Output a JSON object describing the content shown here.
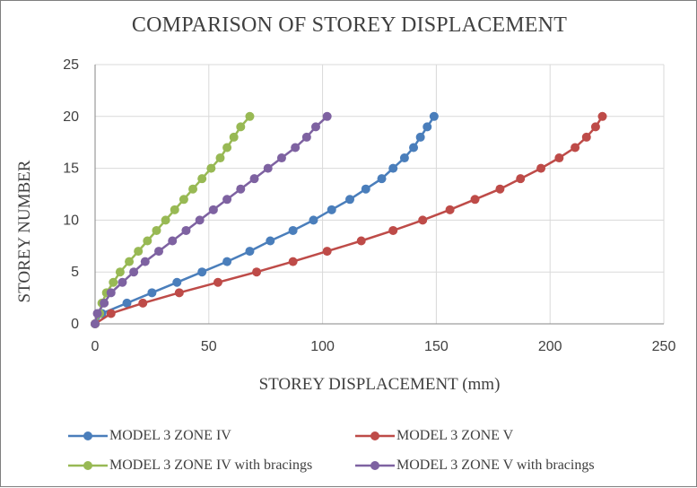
{
  "chart_data": {
    "type": "line",
    "title": "COMPARISON OF STOREY DISPLACEMENT",
    "xlabel": "STOREY DISPLACEMENT (mm)",
    "ylabel": "STOREY NUMBER",
    "xlim": [
      0,
      250
    ],
    "ylim": [
      0,
      25
    ],
    "x_ticks": [
      "0",
      "50",
      "100",
      "150",
      "200",
      "250"
    ],
    "y_ticks": [
      "0",
      "5",
      "10",
      "15",
      "20",
      "25"
    ],
    "grid": true,
    "legend_position": "bottom",
    "series": [
      {
        "name": "MODEL 3 ZONE  IV",
        "color": "#4a7ebb",
        "points": [
          [
            0,
            0
          ],
          [
            3,
            1
          ],
          [
            14,
            2
          ],
          [
            25,
            3
          ],
          [
            36,
            4
          ],
          [
            47,
            5
          ],
          [
            58,
            6
          ],
          [
            68,
            7
          ],
          [
            77,
            8
          ],
          [
            87,
            9
          ],
          [
            96,
            10
          ],
          [
            104,
            11
          ],
          [
            112,
            12
          ],
          [
            119,
            13
          ],
          [
            126,
            14
          ],
          [
            131,
            15
          ],
          [
            136,
            16
          ],
          [
            140,
            17
          ],
          [
            143,
            18
          ],
          [
            146,
            19
          ],
          [
            149,
            20
          ]
        ]
      },
      {
        "name": "MODEL 3 ZONE V",
        "color": "#be4b48",
        "points": [
          [
            0,
            0
          ],
          [
            7,
            1
          ],
          [
            21,
            2
          ],
          [
            37,
            3
          ],
          [
            54,
            4
          ],
          [
            71,
            5
          ],
          [
            87,
            6
          ],
          [
            102,
            7
          ],
          [
            117,
            8
          ],
          [
            131,
            9
          ],
          [
            144,
            10
          ],
          [
            156,
            11
          ],
          [
            167,
            12
          ],
          [
            178,
            13
          ],
          [
            187,
            14
          ],
          [
            196,
            15
          ],
          [
            204,
            16
          ],
          [
            211,
            17
          ],
          [
            216,
            18
          ],
          [
            220,
            19
          ],
          [
            223,
            20
          ]
        ]
      },
      {
        "name": "MODEL 3 ZONE  IV with bracings",
        "color": "#98b954",
        "points": [
          [
            0,
            0
          ],
          [
            2,
            1
          ],
          [
            3,
            2
          ],
          [
            5,
            3
          ],
          [
            8,
            4
          ],
          [
            11,
            5
          ],
          [
            15,
            6
          ],
          [
            19,
            7
          ],
          [
            23,
            8
          ],
          [
            27,
            9
          ],
          [
            31,
            10
          ],
          [
            35,
            11
          ],
          [
            39,
            12
          ],
          [
            43,
            13
          ],
          [
            47,
            14
          ],
          [
            51,
            15
          ],
          [
            55,
            16
          ],
          [
            58,
            17
          ],
          [
            61,
            18
          ],
          [
            64,
            19
          ],
          [
            68,
            20
          ]
        ]
      },
      {
        "name": "MODEL 3 ZONE V with bracings",
        "color": "#7e62a1",
        "points": [
          [
            0,
            0
          ],
          [
            1,
            1
          ],
          [
            4,
            2
          ],
          [
            7,
            3
          ],
          [
            12,
            4
          ],
          [
            17,
            5
          ],
          [
            22,
            6
          ],
          [
            28,
            7
          ],
          [
            34,
            8
          ],
          [
            40,
            9
          ],
          [
            46,
            10
          ],
          [
            52,
            11
          ],
          [
            58,
            12
          ],
          [
            64,
            13
          ],
          [
            70,
            14
          ],
          [
            76,
            15
          ],
          [
            82,
            16
          ],
          [
            88,
            17
          ],
          [
            93,
            18
          ],
          [
            97,
            19
          ],
          [
            102,
            20
          ]
        ]
      }
    ]
  }
}
